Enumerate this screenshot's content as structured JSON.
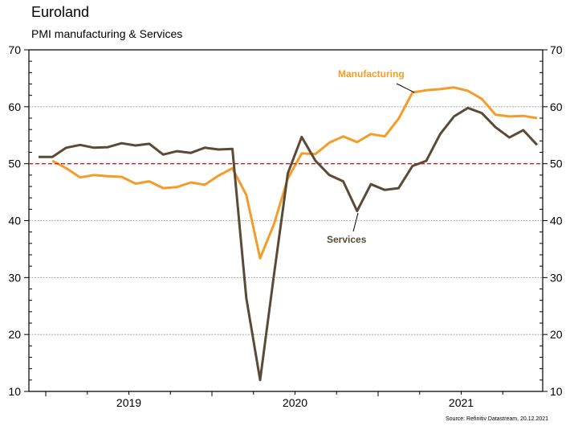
{
  "chart_data": {
    "type": "line",
    "title": "Euroland",
    "subtitle": "PMI manufacturing & Services",
    "source": "Source: Refinitiv Datastream, 20.12.2021",
    "xlabel": "",
    "ylabel": "",
    "ylim": [
      10,
      70
    ],
    "yticks": [
      10,
      20,
      30,
      40,
      50,
      60,
      70
    ],
    "y_ticks_both_sides": true,
    "x_tick_labels": [
      "2019",
      "2020",
      "2021"
    ],
    "grid": "horizontal dotted at 20, 30, 40, 60",
    "reference_line": {
      "value": 50,
      "color": "#e8141e",
      "style": "dashed"
    },
    "x": [
      "2018-12",
      "2019-01",
      "2019-02",
      "2019-03",
      "2019-04",
      "2019-05",
      "2019-06",
      "2019-07",
      "2019-08",
      "2019-09",
      "2019-10",
      "2019-11",
      "2019-12",
      "2020-01",
      "2020-02",
      "2020-03",
      "2020-04",
      "2020-05",
      "2020-06",
      "2020-07",
      "2020-08",
      "2020-09",
      "2020-10",
      "2020-11",
      "2020-12",
      "2021-01",
      "2021-02",
      "2021-03",
      "2021-04",
      "2021-05",
      "2021-06",
      "2021-07",
      "2021-08",
      "2021-09",
      "2021-10",
      "2021-11",
      "2021-12"
    ],
    "series": [
      {
        "name": "Manufacturing",
        "color": "#f59c28",
        "values": [
          null,
          50.5,
          49.2,
          47.6,
          48.0,
          47.8,
          47.7,
          46.5,
          46.9,
          45.7,
          45.9,
          46.7,
          46.3,
          47.9,
          49.2,
          44.5,
          33.4,
          39.4,
          47.4,
          51.8,
          51.7,
          53.7,
          54.8,
          53.8,
          55.2,
          54.8,
          57.9,
          62.5,
          62.9,
          63.1,
          63.4,
          62.8,
          61.4,
          58.6,
          58.3,
          58.4,
          58.0
        ]
      },
      {
        "name": "Services",
        "color": "#5a4a36",
        "values": [
          51.2,
          51.2,
          52.8,
          53.3,
          52.8,
          52.9,
          53.6,
          53.2,
          53.5,
          51.6,
          52.2,
          51.9,
          52.8,
          52.5,
          52.6,
          26.4,
          12.0,
          30.5,
          48.3,
          54.7,
          50.5,
          48.0,
          46.9,
          41.7,
          46.4,
          45.4,
          45.7,
          49.6,
          50.5,
          55.2,
          58.3,
          59.8,
          58.9,
          56.4,
          54.6,
          55.9,
          53.3
        ]
      }
    ],
    "annotations": [
      {
        "text": "Manufacturing",
        "color": "#f59c28",
        "points_to": "2021-03"
      },
      {
        "text": "Services",
        "color": "#5a4a36",
        "points_to": "2020-11"
      }
    ],
    "legend": "none (inline annotations)"
  }
}
